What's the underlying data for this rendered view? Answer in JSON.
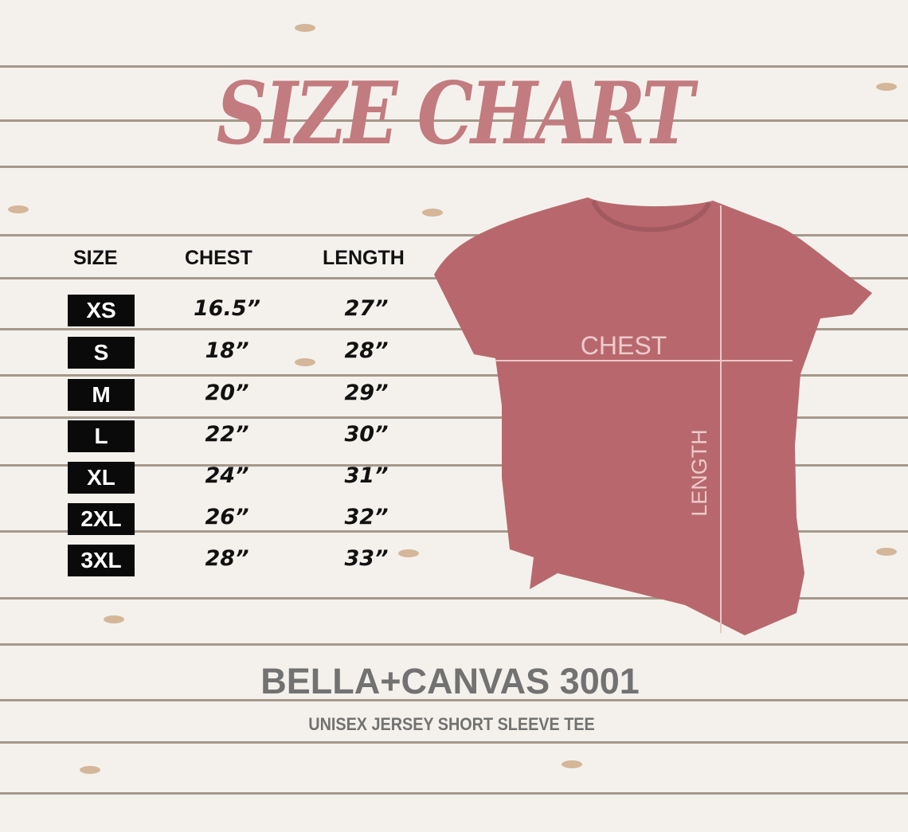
{
  "title": "SIZE CHART",
  "table": {
    "headers": [
      "SIZE",
      "CHEST",
      "LENGTH"
    ],
    "rows": [
      {
        "size": "XS",
        "chest": "16.5”",
        "length": "27”"
      },
      {
        "size": "S",
        "chest": "18”",
        "length": "28”"
      },
      {
        "size": "M",
        "chest": "20”",
        "length": "29”"
      },
      {
        "size": "L",
        "chest": "22”",
        "length": "30”"
      },
      {
        "size": "XL",
        "chest": "24”",
        "length": "31”"
      },
      {
        "size": "2XL",
        "chest": "26”",
        "length": "32”"
      },
      {
        "size": "3XL",
        "chest": "28”",
        "length": "33”"
      }
    ]
  },
  "diagram": {
    "chest_label": "CHEST",
    "length_label": "LENGTH",
    "shirt_color": "#b8686d"
  },
  "brand": {
    "name": "BELLA+CANVAS 3001",
    "subtitle": "UNISEX JERSEY SHORT SLEEVE TEE"
  },
  "colors": {
    "title": "#c27b7e",
    "badge": "#0a0a0a",
    "brand_text": "#727272"
  }
}
